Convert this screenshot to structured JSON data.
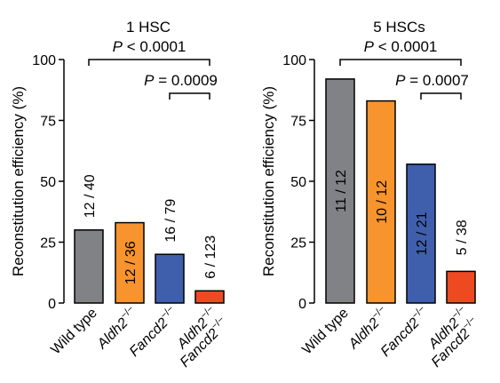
{
  "chart_data": [
    {
      "type": "bar",
      "title": "1 HSC",
      "ylabel": "Reconstitution efficiency (%)",
      "ylim": [
        0,
        100
      ],
      "yticks": [
        0,
        25,
        50,
        75,
        100
      ],
      "categories": [
        {
          "main": "Wild type",
          "sup": ""
        },
        {
          "main": "Aldh2",
          "sup": "−/−"
        },
        {
          "main": "Fancd2",
          "sup": "−/−"
        },
        {
          "main": "Aldh2",
          "sup": "−/−",
          "main2": "Fancd2",
          "sup2": "−/−"
        }
      ],
      "values": [
        30,
        33,
        20,
        5
      ],
      "bar_labels": [
        "12 / 40",
        "12 / 36",
        "16 / 79",
        "6 / 123"
      ],
      "colors": [
        "#808285",
        "#f7942e",
        "#3f5fad",
        "#ee4a22"
      ],
      "comparisons": [
        {
          "from": 0,
          "to": 3,
          "prefix": "P",
          "text": " < 0.0001"
        },
        {
          "from": 2,
          "to": 3,
          "prefix": "P",
          "text": " = 0.0009"
        }
      ]
    },
    {
      "type": "bar",
      "title": "5 HSCs",
      "ylabel": "Reconstitution efficiency (%)",
      "ylim": [
        0,
        100
      ],
      "yticks": [
        0,
        25,
        50,
        75,
        100
      ],
      "categories": [
        {
          "main": "Wild type",
          "sup": ""
        },
        {
          "main": "Aldh2",
          "sup": "−/−"
        },
        {
          "main": "Fancd2",
          "sup": "−/−"
        },
        {
          "main": "Aldh2",
          "sup": "−/−",
          "main2": "Fancd2",
          "sup2": "−/−"
        }
      ],
      "values": [
        92,
        83,
        57,
        13
      ],
      "bar_labels": [
        "11 / 12",
        "10 / 12",
        "12 / 21",
        "5 / 38"
      ],
      "colors": [
        "#808285",
        "#f7942e",
        "#3f5fad",
        "#ee4a22"
      ],
      "comparisons": [
        {
          "from": 0,
          "to": 3,
          "prefix": "P",
          "text": " < 0.0001"
        },
        {
          "from": 2,
          "to": 3,
          "prefix": "P",
          "text": " = 0.0007"
        }
      ]
    }
  ]
}
